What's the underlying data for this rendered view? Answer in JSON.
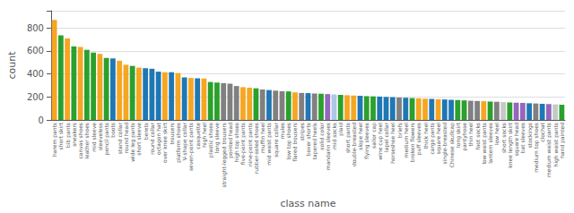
{
  "chart_data": {
    "type": "bar",
    "xlabel": "class name",
    "ylabel": "count",
    "categories": [
      "harem pants",
      "short skirt",
      "bib pants",
      "sneakers",
      "canvas shoes",
      "leather shoes",
      "mid sleeve",
      "sleeveless",
      "pencil pants",
      "boots",
      "stand collar",
      "round head",
      "wide leg pants",
      "short sleeve",
      "berets",
      "round collar",
      "octagon hat",
      "over knee skirt",
      "trousers",
      "platform shoes",
      "V-shape collar",
      "seven-point pants",
      "casquette",
      "high heel",
      "plastic shoes",
      "long sleeve",
      "straight-legged trousers",
      "pointed head",
      "high top shoes",
      "five-point pants",
      "nine-point pants",
      "rubber-soled shoes",
      "muffin heel",
      "mid waist pants",
      "square collar",
      "mules",
      "low top shoes",
      "flared trousers",
      "stripes",
      "boxer shorts",
      "tapered heels",
      "solid color",
      "mandarin sleeves",
      "mid socks",
      "plaid",
      "short pants",
      "double-breasted",
      "slope heel",
      "flying sleeves",
      "sailor cap",
      "wine cup heel",
      "lapel collar",
      "horseshoe heel",
      "briefs",
      "medium heel",
      "broken flowers",
      "puff sleeves",
      "thick heel",
      "cargo pants",
      "square heel",
      "single-breasted",
      "Chinese skullcap",
      "long skirt",
      "pantyhose",
      "thin heel",
      "foot socks",
      "low waist pants",
      "lantern sleeves",
      "low heel",
      "short socks",
      "knee length skirt",
      "square head",
      "bat sleeves",
      "stockings",
      "medium top shoes",
      "clochat",
      "medium waist pants",
      "high waist pants",
      "hand painted"
    ],
    "values": [
      870,
      735,
      710,
      640,
      635,
      610,
      585,
      575,
      540,
      535,
      515,
      480,
      470,
      455,
      450,
      445,
      420,
      415,
      415,
      408,
      370,
      365,
      362,
      360,
      330,
      325,
      320,
      315,
      295,
      285,
      280,
      275,
      265,
      260,
      255,
      250,
      248,
      240,
      235,
      233,
      230,
      228,
      225,
      222,
      218,
      215,
      212,
      210,
      207,
      205,
      203,
      200,
      198,
      195,
      193,
      190,
      188,
      185,
      183,
      180,
      178,
      175,
      173,
      170,
      167,
      165,
      163,
      160,
      158,
      155,
      152,
      150,
      148,
      145,
      143,
      140,
      138,
      135,
      132
    ],
    "colors": [
      "#f5a623",
      "#2ca02c",
      "#f5a623",
      "#2ca02c",
      "#f5a623",
      "#2ca02c",
      "#2ca02c",
      "#f5a623",
      "#2ca02c",
      "#1f77b4",
      "#f5a623",
      "#f5a623",
      "#2ca02c",
      "#f5a623",
      "#1f77b4",
      "#1f77b4",
      "#1f77b4",
      "#f5a623",
      "#1f77b4",
      "#f5a623",
      "#1f77b4",
      "#f5a623",
      "#1f77b4",
      "#f5a623",
      "#2ca02c",
      "#2ca02c",
      "#808080",
      "#808080",
      "#808080",
      "#f5a623",
      "#f5a623",
      "#2ca02c",
      "#808080",
      "#1f77b4",
      "#808080",
      "#808080",
      "#2ca02c",
      "#f5a623",
      "#808080",
      "#1f77b4",
      "#808080",
      "#2ca02c",
      "#9467bd",
      "#aec7e8",
      "#2ca02c",
      "#f5a623",
      "#f5a623",
      "#1f77b4",
      "#2ca02c",
      "#2ca02c",
      "#1f77b4",
      "#1f77b4",
      "#1f77b4",
      "#808080",
      "#1f77b4",
      "#2ca02c",
      "#f5a623",
      "#f5a623",
      "#1f77b4",
      "#f5a623",
      "#1f77b4",
      "#1f77b4",
      "#2ca02c",
      "#2ca02c",
      "#808080",
      "#808080",
      "#f5a623",
      "#2ca02c",
      "#808080",
      "#c5c9c7",
      "#2ca02c",
      "#9467bd",
      "#9467bd",
      "#1f77b4",
      "#808080",
      "#1f77b4",
      "#9467bd",
      "#c5c9c7",
      "#2ca02c"
    ],
    "ylim": [
      0,
      950
    ],
    "yticks": [
      0,
      200,
      400,
      600,
      800
    ],
    "grid": true
  }
}
